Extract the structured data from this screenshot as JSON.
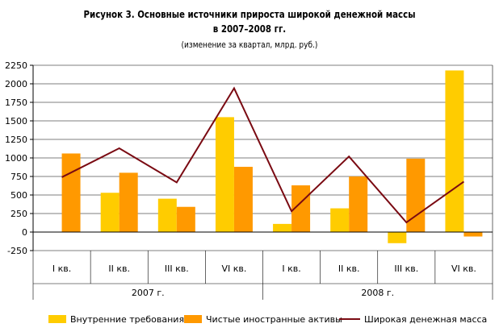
{
  "title_line1": "Рисунок 3. Основные источники прироста широкой денежной массы",
  "title_line2": "в 2007–2008 гг.",
  "subtitle": "(изменение за квартал, млрд. руб.)",
  "chart_data": {
    "type": "bar+line",
    "categories": [
      "I кв.",
      "II кв.",
      "III кв.",
      "VI кв.",
      "I кв.",
      "II кв.",
      "III кв.",
      "VI кв."
    ],
    "years": [
      {
        "label": "2007 г.",
        "span": 4
      },
      {
        "label": "2008 г.",
        "span": 4
      }
    ],
    "series": [
      {
        "name": "Внутренние требования",
        "kind": "bar",
        "color": "#FFCC00",
        "values": [
          0,
          530,
          450,
          1550,
          110,
          320,
          -150,
          2180
        ]
      },
      {
        "name": "Чистые иностранные активы",
        "kind": "bar",
        "color": "#FF9900",
        "values": [
          1060,
          800,
          340,
          880,
          630,
          750,
          990,
          -60
        ]
      },
      {
        "name": "Широкая денежная масса",
        "kind": "line",
        "color": "#7A0A12",
        "values": [
          740,
          1130,
          670,
          1940,
          280,
          1020,
          130,
          680
        ]
      }
    ],
    "ylim": [
      -250,
      2250
    ],
    "yticks": [
      -250,
      0,
      250,
      500,
      750,
      1000,
      1250,
      1500,
      1750,
      2000,
      2250
    ],
    "grid": true,
    "legend": "bottom"
  }
}
